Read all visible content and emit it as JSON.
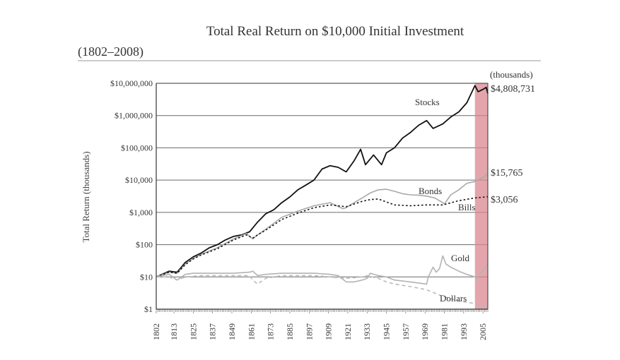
{
  "chart_data": {
    "type": "line",
    "title": "Total Real Return on $10,000 Initial Investment",
    "subtitle": "(1802–2008)",
    "ylabel": "Total Return (thousands)",
    "units_note": "(thousands)",
    "y_scale": "log",
    "ylim": [
      1,
      10000000
    ],
    "xlim": [
      1802,
      2008
    ],
    "y_ticks": [
      {
        "value": 1,
        "label": "$1"
      },
      {
        "value": 10,
        "label": "$10"
      },
      {
        "value": 100,
        "label": "$100"
      },
      {
        "value": 1000,
        "label": "$1,000"
      },
      {
        "value": 10000,
        "label": "$10,000"
      },
      {
        "value": 100000,
        "label": "$100,000"
      },
      {
        "value": 1000000,
        "label": "$1,000,000"
      },
      {
        "value": 10000000,
        "label": "$10,000,000"
      }
    ],
    "x_ticks": [
      1802,
      1813,
      1825,
      1837,
      1849,
      1861,
      1873,
      1885,
      1897,
      1909,
      1921,
      1933,
      1945,
      1957,
      1969,
      1981,
      1993,
      2005
    ],
    "grid": "horizontal",
    "highlight": {
      "from": 2000,
      "to": 2008,
      "color": "#d9878f"
    },
    "series": [
      {
        "name": "Stocks",
        "end_label": "$4,808,731",
        "color": "#111111",
        "style": "solid",
        "x": [
          1802,
          1810,
          1815,
          1820,
          1825,
          1830,
          1835,
          1840,
          1845,
          1850,
          1855,
          1860,
          1865,
          1870,
          1875,
          1880,
          1885,
          1890,
          1895,
          1900,
          1905,
          1910,
          1915,
          1920,
          1925,
          1929,
          1932,
          1937,
          1942,
          1945,
          1950,
          1955,
          1960,
          1965,
          1970,
          1974,
          1980,
          1985,
          1990,
          1995,
          2000,
          2002,
          2005,
          2007,
          2008
        ],
        "y": [
          10,
          15,
          14,
          28,
          42,
          55,
          80,
          100,
          140,
          180,
          200,
          250,
          500,
          900,
          1200,
          2000,
          3000,
          5000,
          7000,
          10000,
          22000,
          28000,
          25000,
          18000,
          40000,
          90000,
          30000,
          60000,
          30000,
          70000,
          100000,
          200000,
          300000,
          500000,
          700000,
          400000,
          550000,
          900000,
          1300000,
          2500000,
          8500000,
          5500000,
          6500000,
          7500000,
          4808731
        ]
      },
      {
        "name": "Bonds",
        "end_label": "$15,765",
        "color": "#a9a9a9",
        "style": "solid",
        "x": [
          1802,
          1810,
          1815,
          1820,
          1825,
          1830,
          1840,
          1850,
          1858,
          1862,
          1865,
          1870,
          1880,
          1890,
          1900,
          1910,
          1918,
          1920,
          1925,
          1930,
          1935,
          1940,
          1945,
          1950,
          1955,
          1960,
          1965,
          1970,
          1975,
          1980,
          1981,
          1985,
          1990,
          1995,
          2000,
          2005,
          2008
        ],
        "y": [
          10,
          14,
          13,
          25,
          38,
          50,
          80,
          150,
          220,
          150,
          200,
          300,
          700,
          1100,
          1600,
          2000,
          1300,
          1400,
          2000,
          2800,
          4000,
          5000,
          5200,
          4500,
          3800,
          3500,
          3400,
          3200,
          2800,
          2000,
          1800,
          3500,
          5000,
          8000,
          9000,
          12000,
          15765
        ]
      },
      {
        "name": "Bills",
        "end_label": "$3,056",
        "color": "#111111",
        "style": "dotted",
        "x": [
          1802,
          1810,
          1815,
          1820,
          1825,
          1830,
          1840,
          1850,
          1858,
          1862,
          1865,
          1870,
          1880,
          1890,
          1900,
          1910,
          1920,
          1930,
          1935,
          1940,
          1945,
          1950,
          1960,
          1970,
          1980,
          1990,
          2000,
          2008
        ],
        "y": [
          10,
          14,
          13,
          24,
          36,
          48,
          75,
          140,
          200,
          160,
          200,
          280,
          600,
          950,
          1400,
          1700,
          1500,
          2200,
          2500,
          2600,
          2100,
          1700,
          1600,
          1700,
          1700,
          2300,
          2800,
          3056
        ]
      },
      {
        "name": "Gold",
        "color": "#b3b3b3",
        "style": "solid",
        "x": [
          1802,
          1810,
          1815,
          1820,
          1825,
          1830,
          1840,
          1850,
          1860,
          1862,
          1865,
          1870,
          1880,
          1890,
          1900,
          1910,
          1915,
          1920,
          1925,
          1930,
          1933,
          1935,
          1940,
          1945,
          1950,
          1960,
          1970,
          1971,
          1974,
          1976,
          1978,
          1980,
          1982,
          1985,
          1990,
          1995,
          2000,
          2001,
          2005,
          2008
        ],
        "y": [
          10,
          12,
          8,
          12,
          13,
          13,
          13,
          13,
          14,
          15,
          11,
          12,
          13,
          13,
          13,
          12,
          11,
          7,
          7,
          8,
          9,
          13,
          11,
          10,
          8,
          7,
          6,
          10,
          20,
          14,
          18,
          45,
          25,
          20,
          15,
          12,
          10,
          9,
          16,
          25
        ]
      },
      {
        "name": "Dollars",
        "color": "#bbbbbb",
        "style": "dashed",
        "x": [
          1802,
          1810,
          1815,
          1820,
          1830,
          1840,
          1850,
          1860,
          1862,
          1865,
          1870,
          1880,
          1890,
          1900,
          1910,
          1920,
          1930,
          1933,
          1940,
          1945,
          1950,
          1960,
          1970,
          1980,
          1990,
          2000,
          2008
        ],
        "y": [
          10,
          10,
          8,
          10,
          11,
          11,
          11,
          11,
          8,
          6,
          9,
          11,
          11,
          11,
          10,
          9,
          10,
          11,
          9,
          7,
          6,
          5,
          4,
          2.5,
          1.8,
          1.5,
          1.4
        ]
      }
    ]
  }
}
